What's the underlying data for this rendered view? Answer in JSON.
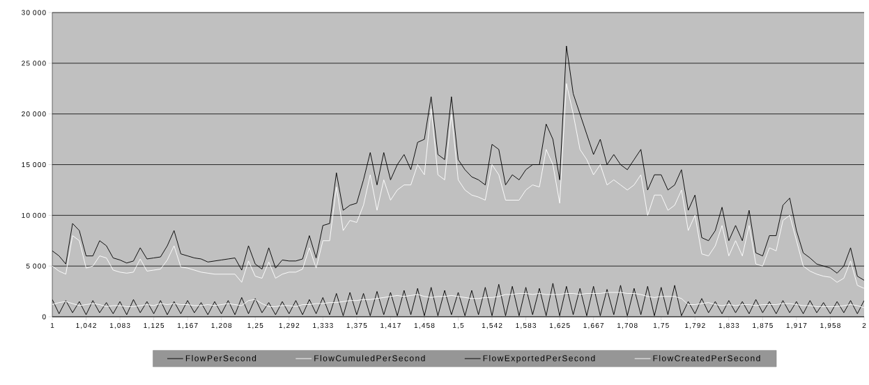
{
  "chart_data": {
    "type": "line",
    "categories": [
      "1",
      null,
      null,
      null,
      null,
      "1,042",
      null,
      null,
      null,
      null,
      "1,083",
      null,
      null,
      null,
      null,
      "1,125",
      null,
      null,
      null,
      null,
      "1,167",
      null,
      null,
      null,
      null,
      "1,208",
      null,
      null,
      null,
      null,
      "1,25",
      null,
      null,
      null,
      null,
      "1,292",
      null,
      null,
      null,
      null,
      "1,333",
      null,
      null,
      null,
      null,
      "1,375",
      null,
      null,
      null,
      null,
      "1,417",
      null,
      null,
      null,
      null,
      "1,458",
      null,
      null,
      null,
      null,
      "1,5",
      null,
      null,
      null,
      null,
      "1,542",
      null,
      null,
      null,
      null,
      "1,583",
      null,
      null,
      null,
      null,
      "1,625",
      null,
      null,
      null,
      null,
      "1,667",
      null,
      null,
      null,
      null,
      "1,708",
      null,
      null,
      null,
      null,
      "1,75",
      null,
      null,
      null,
      null,
      "1,792",
      null,
      null,
      null,
      null,
      "1,833",
      null,
      null,
      null,
      null,
      "1,875",
      null,
      null,
      null,
      null,
      "1,917",
      null,
      null,
      null,
      null,
      "1,958",
      null,
      null,
      null,
      null,
      "2"
    ],
    "series": [
      {
        "name": "FlowPerSecond",
        "color": "#000000",
        "values": [
          6500,
          6000,
          5200,
          9200,
          8500,
          6000,
          6000,
          7500,
          7000,
          5800,
          5600,
          5300,
          5500,
          6800,
          5700,
          5800,
          5900,
          7000,
          8500,
          6200,
          6000,
          5800,
          5700,
          5400,
          5500,
          5600,
          5700,
          5800,
          4600,
          7000,
          5200,
          4700,
          6800,
          4800,
          5600,
          5500,
          5500,
          5700,
          8000,
          5800,
          9000,
          9200,
          14200,
          10500,
          11000,
          11200,
          13500,
          16200,
          13000,
          16200,
          13500,
          15000,
          16000,
          14500,
          17200,
          17500,
          21700,
          16000,
          15500,
          21700,
          15500,
          14500,
          13800,
          13500,
          13000,
          17000,
          16500,
          13000,
          14000,
          13500,
          14500,
          15000,
          15000,
          19000,
          17500,
          13500,
          26700,
          22000,
          20000,
          18000,
          16000,
          17500,
          15000,
          16000,
          15000,
          14500,
          15500,
          16500,
          12500,
          14000,
          14000,
          12500,
          13000,
          14500,
          10500,
          12000,
          7800,
          7500,
          8500,
          10800,
          7500,
          9000,
          7500,
          10500,
          6300,
          6000,
          8000,
          8000,
          11000,
          11700,
          8500,
          6300,
          5800,
          5200,
          5000,
          4800,
          4300,
          5000,
          6800,
          4000,
          3600
        ]
      },
      {
        "name": "FlowCumuledPerSecond",
        "color": "#ffffff",
        "values": [
          5000,
          4500,
          4200,
          8000,
          7500,
          4800,
          5000,
          6000,
          5800,
          4600,
          4400,
          4300,
          4400,
          5700,
          4500,
          4600,
          4700,
          5600,
          7000,
          4900,
          4800,
          4600,
          4400,
          4300,
          4200,
          4200,
          4200,
          4200,
          3400,
          5500,
          4000,
          3800,
          5400,
          3800,
          4200,
          4400,
          4400,
          4700,
          6800,
          4800,
          7500,
          7500,
          12800,
          8500,
          9500,
          9300,
          11000,
          14000,
          10500,
          13500,
          11500,
          12500,
          13000,
          13000,
          15000,
          14000,
          20500,
          14000,
          13500,
          20000,
          13500,
          12500,
          12000,
          11800,
          11500,
          15000,
          14000,
          11500,
          11500,
          11500,
          12500,
          13000,
          12800,
          16500,
          15000,
          11200,
          23000,
          20000,
          16500,
          15500,
          14000,
          15000,
          13000,
          13500,
          13000,
          12500,
          13000,
          14000,
          10000,
          12000,
          12000,
          10500,
          11000,
          12500,
          8500,
          10000,
          6200,
          6000,
          7000,
          9000,
          6000,
          7500,
          6000,
          9000,
          5200,
          5000,
          6800,
          6500,
          9500,
          10000,
          7500,
          5000,
          4500,
          4200,
          4000,
          3900,
          3400,
          3800,
          5500,
          3100,
          2800
        ]
      },
      {
        "name": "FlowExportedPerSecond",
        "color": "#000000",
        "values": [
          1700,
          300,
          1600,
          400,
          1500,
          200,
          1600,
          400,
          1400,
          300,
          1500,
          200,
          1700,
          400,
          1500,
          300,
          1600,
          200,
          1500,
          300,
          1600,
          400,
          1400,
          200,
          1500,
          300,
          1600,
          200,
          1900,
          300,
          1800,
          400,
          1400,
          200,
          1500,
          300,
          1600,
          200,
          1700,
          300,
          1900,
          200,
          2300,
          100,
          2400,
          200,
          2300,
          100,
          2500,
          200,
          2400,
          100,
          2600,
          200,
          2800,
          100,
          2900,
          100,
          2600,
          200,
          2400,
          100,
          2600,
          200,
          2900,
          100,
          3200,
          100,
          3000,
          100,
          2900,
          200,
          2800,
          100,
          3300,
          100,
          3000,
          200,
          2800,
          100,
          3000,
          100,
          2700,
          200,
          3100,
          100,
          2800,
          200,
          3000,
          100,
          2900,
          200,
          3100,
          100,
          1500,
          300,
          1800,
          400,
          1500,
          300,
          1600,
          400,
          1500,
          300,
          1700,
          400,
          1500,
          300,
          1600,
          400,
          1500,
          300,
          1600,
          400,
          1400,
          300,
          1500,
          400,
          1600,
          300,
          1600
        ]
      },
      {
        "name": "FlowCreatedPerSecond",
        "color": "#ffffff",
        "values": [
          1200,
          1400,
          1500,
          1300,
          1100,
          1200,
          1300,
          1200,
          1000,
          1100,
          1100,
          1000,
          1000,
          1100,
          1200,
          1100,
          1300,
          1200,
          1300,
          1200,
          1200,
          1100,
          1100,
          1200,
          1100,
          1200,
          1300,
          1200,
          1100,
          1600,
          1700,
          1300,
          1000,
          1000,
          1100,
          1100,
          1000,
          1200,
          1200,
          1300,
          1300,
          1400,
          1400,
          1500,
          1600,
          1600,
          1700,
          1700,
          1800,
          1900,
          2000,
          2100,
          2000,
          2100,
          2200,
          2000,
          1900,
          2000,
          2000,
          2100,
          2000,
          1900,
          1800,
          1800,
          1900,
          1900,
          2000,
          2200,
          2200,
          2300,
          2300,
          2200,
          2300,
          2200,
          2200,
          2200,
          2300,
          2300,
          2200,
          2300,
          2300,
          2300,
          2400,
          2400,
          2400,
          2300,
          2300,
          2200,
          2000,
          1900,
          2000,
          2000,
          2000,
          1800,
          1200,
          1200,
          1300,
          1400,
          1200,
          1100,
          1200,
          1100,
          1200,
          1200,
          1100,
          1200,
          1200,
          1200,
          1300,
          1300,
          1200,
          1100,
          1100,
          1000,
          1000,
          1000,
          1000,
          1100,
          1200,
          1100,
          900
        ]
      }
    ],
    "ylim": [
      0,
      30000
    ],
    "yticks": [
      0,
      {
        "value": 5000,
        "label": "5 000"
      },
      {
        "value": 10000,
        "label": "10 000"
      },
      {
        "value": 15000,
        "label": "15 000"
      },
      {
        "value": 20000,
        "label": "20 000"
      },
      {
        "value": 25000,
        "label": "25 000"
      },
      {
        "value": 30000,
        "label": "30 000"
      }
    ],
    "grid": "y",
    "legend": "bottom",
    "marker": "none",
    "line_style": "solid"
  }
}
